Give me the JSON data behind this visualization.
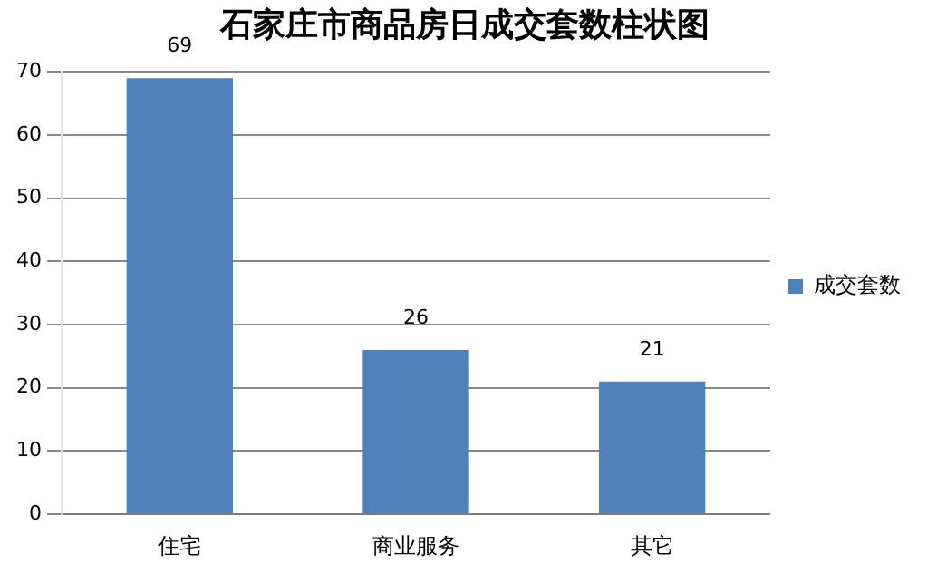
{
  "chart_data": {
    "type": "bar",
    "title": "石家庄市商品房日成交套数柱状图",
    "categories": [
      "住宅",
      "商业服务",
      "其它"
    ],
    "series": [
      {
        "name": "成交套数",
        "color": "#4f81bd",
        "values": [
          69,
          26,
          21
        ]
      }
    ],
    "ylim": [
      0,
      70
    ],
    "yticks": [
      0,
      10,
      20,
      30,
      40,
      50,
      60,
      70
    ],
    "grid": "y",
    "legend": "right",
    "data_labels": true
  }
}
